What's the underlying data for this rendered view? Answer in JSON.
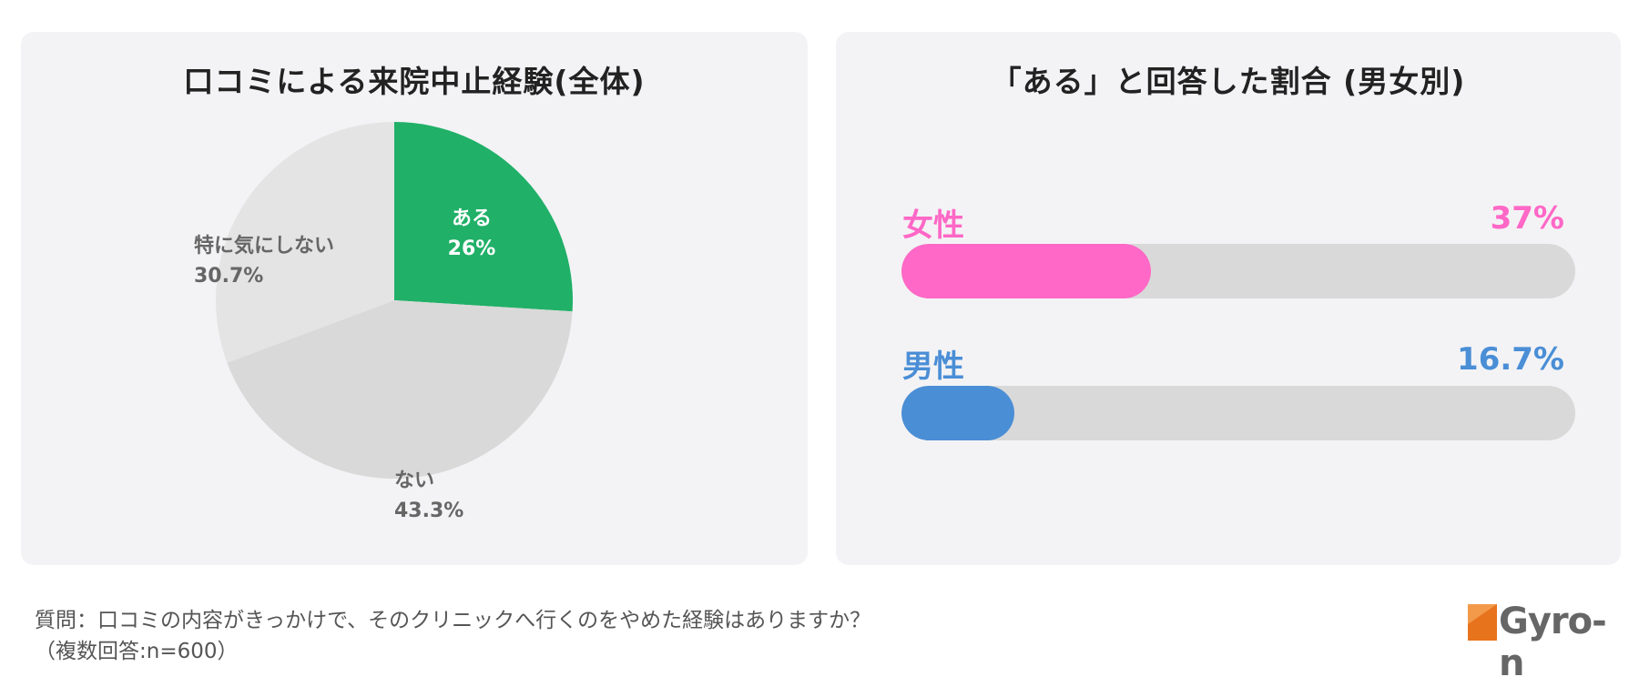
{
  "left_panel": {
    "title": "口コミによる来院中止経験(全体)"
  },
  "right_panel": {
    "title": "「ある」と回答した割合 (男女別)"
  },
  "chart_data": [
    {
      "type": "pie",
      "title": "口コミによる来院中止経験(全体)",
      "slices": [
        {
          "label": "ある",
          "value": 26,
          "display": "26%",
          "color": "#20b068",
          "label_color": "#ffffff"
        },
        {
          "label": "ない",
          "value": 43.3,
          "display": "43.3%",
          "color": "#d9d9d9",
          "label_color": "#666666"
        },
        {
          "label": "特に気にしない",
          "value": 30.7,
          "display": "30.7%",
          "color": "#e4e4e4",
          "label_color": "#666666"
        }
      ]
    },
    {
      "type": "bar",
      "orientation": "horizontal",
      "title": "「ある」と回答した割合 (男女別)",
      "xlim": [
        0,
        100
      ],
      "bars": [
        {
          "label": "女性",
          "value": 37,
          "display": "37%",
          "color": "#ff68c6"
        },
        {
          "label": "男性",
          "value": 16.7,
          "display": "16.7%",
          "color": "#4a8ed6"
        }
      ]
    }
  ],
  "footnote": {
    "line1": "質問：口コミの内容がきっかけで、そのクリニックへ行くのをやめた経験はありますか？",
    "line2": "（複数回答:n=600）"
  },
  "logo": {
    "text": "Gyro-n",
    "accent_color": "#e8731d"
  }
}
